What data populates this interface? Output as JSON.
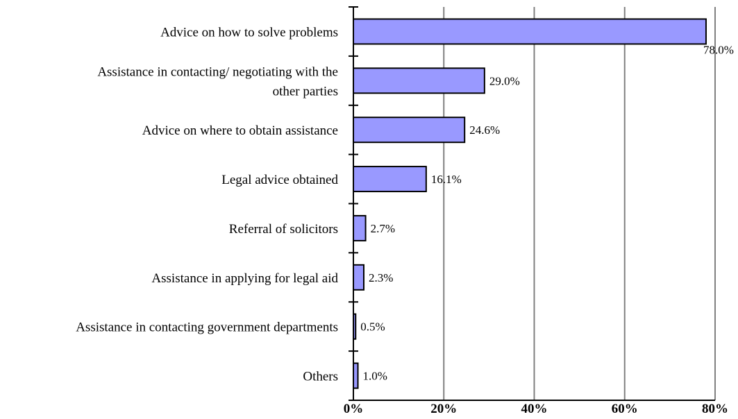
{
  "chart_data": {
    "type": "bar",
    "orientation": "horizontal",
    "categories": [
      [
        "Advice on how to solve problems"
      ],
      [
        "Assistance in contacting/ negotiating with the",
        "other parties"
      ],
      [
        "Advice on where to obtain assistance"
      ],
      [
        "Legal advice obtained"
      ],
      [
        "Referral of solicitors"
      ],
      [
        "Assistance in applying for legal aid"
      ],
      [
        "Assistance in contacting government departments"
      ],
      [
        "Others"
      ]
    ],
    "values": [
      78.0,
      29.0,
      24.6,
      16.1,
      2.7,
      2.3,
      0.5,
      1.0
    ],
    "value_labels": [
      "78.0%",
      "29.0%",
      "24.6%",
      "16.1%",
      "2.7%",
      "2.3%",
      "0.5%",
      "1.0%"
    ],
    "xlim": [
      0,
      80
    ],
    "xticks": [
      0,
      20,
      40,
      60,
      80
    ],
    "xtick_labels": [
      "0%",
      "20%",
      "40%",
      "60%",
      "80%"
    ],
    "grid": "vertical",
    "bar_color": "#9999ff",
    "bar_stroke": "#000000",
    "grid_color": "#808080"
  }
}
